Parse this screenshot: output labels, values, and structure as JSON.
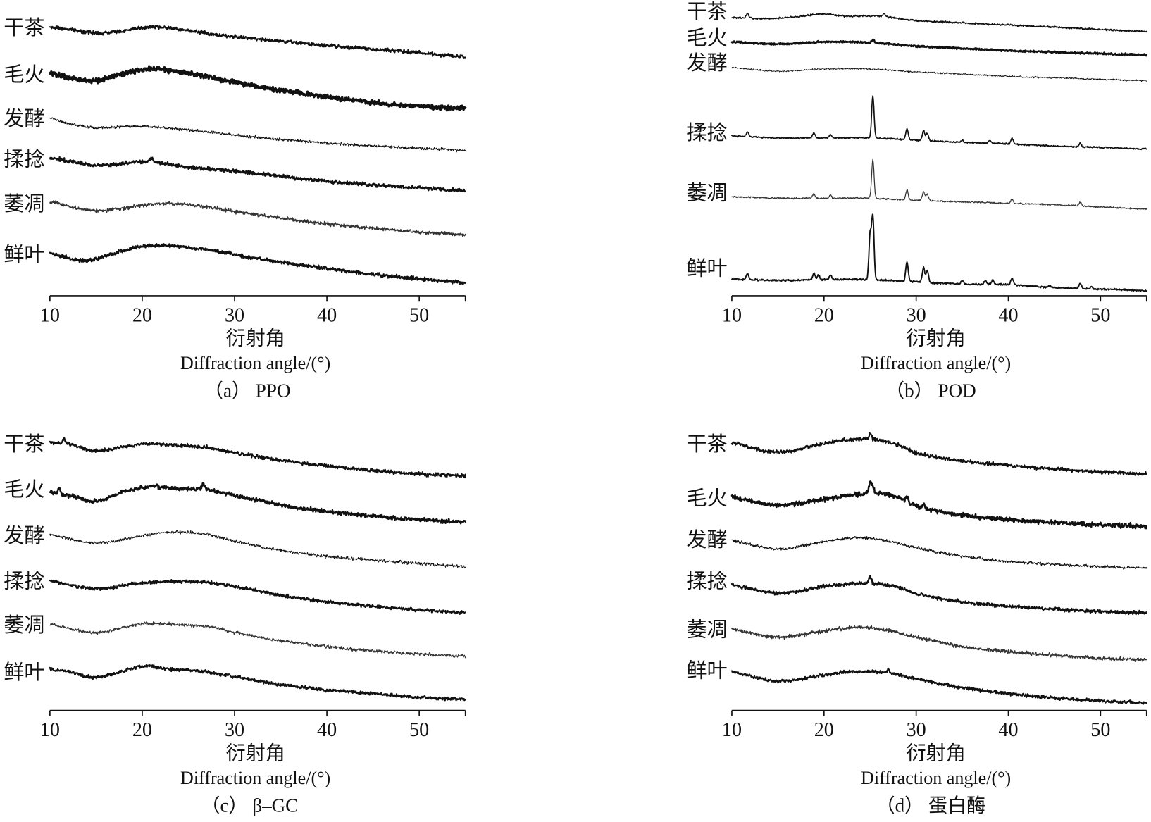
{
  "chart_data": [
    {
      "type": "line",
      "title": "（a） PPO",
      "xlabel": "衍射角",
      "xlabel_en": "Diffraction angle/(°)",
      "ylabel": "",
      "xlim": [
        10,
        55
      ],
      "xticks": [
        10,
        20,
        30,
        40,
        50
      ],
      "grid": false,
      "series": [
        {
          "name": "干茶",
          "x": [
            10,
            12,
            15,
            18,
            20,
            22,
            25,
            30,
            35,
            40,
            45,
            50,
            55
          ],
          "y": [
            41,
            38,
            33,
            36,
            40,
            41,
            36,
            28,
            22,
            16,
            11,
            6,
            0
          ],
          "peaks": []
        },
        {
          "name": "毛火",
          "x": [
            10,
            13,
            15,
            18,
            21,
            24,
            27,
            30,
            35,
            40,
            45,
            50,
            55
          ],
          "y": [
            48,
            40,
            38,
            48,
            54,
            50,
            44,
            36,
            25,
            16,
            8,
            3,
            0
          ],
          "peaks": []
        },
        {
          "name": "发酵",
          "x": [
            10,
            12,
            15,
            20,
            25,
            30,
            35,
            40,
            45,
            50,
            55
          ],
          "y": [
            45,
            37,
            31,
            33,
            28,
            21,
            15,
            10,
            6,
            3,
            0
          ],
          "peaks": []
        },
        {
          "name": "揉捻",
          "x": [
            10,
            15,
            20,
            22,
            25,
            30,
            35,
            40,
            45,
            50,
            55
          ],
          "y": [
            45,
            35,
            40,
            38,
            32,
            27,
            20,
            13,
            8,
            4,
            0
          ],
          "peaks": [
            {
              "x": 21.0,
              "h": 5
            }
          ]
        },
        {
          "name": "萎凋",
          "x": [
            10,
            15,
            20,
            23,
            27,
            30,
            35,
            40,
            45,
            50,
            55
          ],
          "y": [
            45,
            33,
            40,
            43,
            38,
            32,
            23,
            15,
            9,
            4,
            0
          ],
          "peaks": []
        },
        {
          "name": "鲜叶",
          "x": [
            10,
            14,
            17,
            20,
            23,
            27,
            30,
            35,
            40,
            45,
            50,
            55
          ],
          "y": [
            39,
            30,
            40,
            49,
            50,
            45,
            38,
            28,
            19,
            11,
            5,
            0
          ],
          "peaks": []
        }
      ]
    },
    {
      "type": "line",
      "title": "（b） POD",
      "xlabel": "衍射角",
      "xlabel_en": "Diffraction angle/(°)",
      "ylabel": "",
      "xlim": [
        10,
        55
      ],
      "xticks": [
        10,
        20,
        30,
        40,
        50
      ],
      "grid": false,
      "series": [
        {
          "name": "干茶",
          "x": [
            10,
            15,
            20,
            22,
            26,
            30,
            35,
            40,
            45,
            50,
            55
          ],
          "y": [
            19,
            18,
            24,
            21,
            21,
            15,
            12,
            9,
            6,
            3,
            0
          ],
          "peaks": [
            {
              "x": 11.7,
              "h": 6
            },
            {
              "x": 26.5,
              "h": 4
            }
          ]
        },
        {
          "name": "毛火",
          "x": [
            10,
            15,
            20,
            25,
            30,
            35,
            40,
            45,
            50,
            55
          ],
          "y": [
            18,
            15,
            18,
            17,
            12,
            9,
            6,
            4,
            2,
            0
          ],
          "peaks": [
            {
              "x": 25.3,
              "h": 4
            }
          ]
        },
        {
          "name": "发酵",
          "x": [
            10,
            15,
            20,
            25,
            30,
            35,
            40,
            45,
            50,
            55
          ],
          "y": [
            18,
            13,
            16,
            16,
            12,
            9,
            6,
            4,
            2,
            0
          ],
          "peaks": []
        },
        {
          "name": "揉捻",
          "x": [
            10,
            15,
            20,
            25,
            30,
            35,
            40,
            45,
            50,
            55
          ],
          "y": [
            18,
            15,
            15,
            15,
            12,
            9,
            7,
            4,
            2,
            0
          ],
          "peaks": [
            {
              "x": 11.7,
              "h": 6
            },
            {
              "x": 18.9,
              "h": 7
            },
            {
              "x": 20.7,
              "h": 5
            },
            {
              "x": 25.3,
              "h": 57
            },
            {
              "x": 29.0,
              "h": 15
            },
            {
              "x": 30.8,
              "h": 14
            },
            {
              "x": 31.2,
              "h": 10
            },
            {
              "x": 35.0,
              "h": 3
            },
            {
              "x": 38.0,
              "h": 4
            },
            {
              "x": 40.4,
              "h": 8
            },
            {
              "x": 47.8,
              "h": 5
            }
          ]
        },
        {
          "name": "萎凋",
          "x": [
            10,
            15,
            20,
            25,
            30,
            35,
            40,
            45,
            50,
            55
          ],
          "y": [
            17,
            15,
            15,
            15,
            12,
            10,
            8,
            6,
            3,
            0
          ],
          "peaks": [
            {
              "x": 18.9,
              "h": 6
            },
            {
              "x": 20.7,
              "h": 4
            },
            {
              "x": 25.3,
              "h": 53
            },
            {
              "x": 29.0,
              "h": 14
            },
            {
              "x": 30.8,
              "h": 12
            },
            {
              "x": 31.2,
              "h": 9
            },
            {
              "x": 40.4,
              "h": 6
            },
            {
              "x": 47.8,
              "h": 5
            }
          ]
        },
        {
          "name": "鲜叶",
          "x": [
            10,
            15,
            20,
            25,
            30,
            35,
            40,
            45,
            50,
            55
          ],
          "y": [
            16,
            14,
            15,
            15,
            12,
            9,
            8,
            4,
            2,
            0
          ],
          "peaks": [
            {
              "x": 11.7,
              "h": 8
            },
            {
              "x": 18.9,
              "h": 9
            },
            {
              "x": 19.4,
              "h": 6
            },
            {
              "x": 20.7,
              "h": 6
            },
            {
              "x": 25.0,
              "h": 60
            },
            {
              "x": 25.3,
              "h": 85
            },
            {
              "x": 29.0,
              "h": 27
            },
            {
              "x": 30.8,
              "h": 20
            },
            {
              "x": 31.2,
              "h": 16
            },
            {
              "x": 35.0,
              "h": 5
            },
            {
              "x": 37.5,
              "h": 5
            },
            {
              "x": 38.3,
              "h": 6
            },
            {
              "x": 40.4,
              "h": 9
            },
            {
              "x": 44.5,
              "h": 3
            },
            {
              "x": 47.8,
              "h": 7
            },
            {
              "x": 49.0,
              "h": 3
            }
          ]
        }
      ]
    },
    {
      "type": "line",
      "title": "（c） β–GC",
      "xlabel": "衍射角",
      "xlabel_en": "Diffraction angle/(°)",
      "ylabel": "",
      "xlim": [
        10,
        55
      ],
      "xticks": [
        10,
        20,
        30,
        40,
        50
      ],
      "grid": false,
      "series": [
        {
          "name": "干茶",
          "x": [
            10,
            12,
            15,
            20,
            23,
            27,
            30,
            35,
            40,
            45,
            50,
            55
          ],
          "y": [
            45,
            43,
            34,
            43,
            42,
            38,
            31,
            21,
            13,
            7,
            2,
            0
          ],
          "peaks": [
            {
              "x": 11.5,
              "h": 6
            }
          ]
        },
        {
          "name": "毛火",
          "x": [
            10,
            13,
            15,
            18,
            21,
            24,
            27,
            30,
            35,
            40,
            45,
            50,
            55
          ],
          "y": [
            41,
            33,
            28,
            41,
            48,
            45,
            44,
            36,
            23,
            14,
            8,
            3,
            0
          ],
          "peaks": [
            {
              "x": 11.0,
              "h": 8
            },
            {
              "x": 26.6,
              "h": 8
            }
          ]
        },
        {
          "name": "发酵",
          "x": [
            10,
            15,
            20,
            23,
            27,
            30,
            35,
            40,
            45,
            50,
            55
          ],
          "y": [
            44,
            32,
            42,
            47,
            44,
            35,
            22,
            14,
            9,
            4,
            0
          ],
          "peaks": []
        },
        {
          "name": "揉捻",
          "x": [
            10,
            15,
            20,
            25,
            28,
            30,
            35,
            40,
            45,
            50,
            55
          ],
          "y": [
            44,
            33,
            41,
            43,
            40,
            36,
            24,
            15,
            9,
            4,
            0
          ],
          "peaks": []
        },
        {
          "name": "萎凋",
          "x": [
            10,
            15,
            20,
            25,
            28,
            30,
            35,
            40,
            45,
            50,
            55
          ],
          "y": [
            44,
            32,
            44,
            42,
            39,
            32,
            21,
            13,
            7,
            3,
            0
          ],
          "peaks": []
        },
        {
          "name": "鲜叶",
          "x": [
            10,
            12,
            15,
            20,
            23,
            26,
            30,
            35,
            40,
            45,
            50,
            55
          ],
          "y": [
            41,
            38,
            30,
            45,
            41,
            39,
            31,
            20,
            13,
            8,
            3,
            0
          ],
          "peaks": []
        }
      ]
    },
    {
      "type": "line",
      "title": "（d） 蛋白酶",
      "xlabel": "衍射角",
      "xlabel_en": "Diffraction angle/(°)",
      "ylabel": "",
      "xlim": [
        10,
        55
      ],
      "xticks": [
        10,
        20,
        30,
        40,
        50
      ],
      "grid": false,
      "series": [
        {
          "name": "干茶",
          "x": [
            10,
            15,
            20,
            22,
            25,
            28,
            30,
            35,
            40,
            45,
            50,
            55
          ],
          "y": [
            43,
            30,
            42,
            46,
            48,
            40,
            29,
            18,
            12,
            7,
            3,
            0
          ],
          "peaks": [
            {
              "x": 25.0,
              "h": 8
            }
          ]
        },
        {
          "name": "毛火",
          "x": [
            10,
            15,
            20,
            23,
            25,
            28,
            30,
            35,
            40,
            45,
            50,
            55
          ],
          "y": [
            40,
            29,
            37,
            42,
            45,
            39,
            27,
            15,
            9,
            5,
            2,
            0
          ],
          "peaks": [
            {
              "x": 25.0,
              "h": 15
            },
            {
              "x": 25.3,
              "h": 10
            },
            {
              "x": 29.0,
              "h": 8
            },
            {
              "x": 30.8,
              "h": 6
            }
          ]
        },
        {
          "name": "发酵",
          "x": [
            10,
            15,
            20,
            23,
            26,
            30,
            35,
            40,
            45,
            50,
            55
          ],
          "y": [
            38,
            26,
            36,
            41,
            39,
            28,
            16,
            9,
            5,
            2,
            0
          ],
          "peaks": []
        },
        {
          "name": "揉捻",
          "x": [
            10,
            15,
            20,
            23,
            25,
            28,
            30,
            35,
            40,
            45,
            50,
            55
          ],
          "y": [
            38,
            27,
            36,
            40,
            40,
            35,
            26,
            15,
            9,
            5,
            2,
            0
          ],
          "peaks": [
            {
              "x": 25.0,
              "h": 10
            }
          ]
        },
        {
          "name": "萎凋",
          "x": [
            10,
            15,
            20,
            23,
            26,
            30,
            35,
            40,
            45,
            50,
            55
          ],
          "y": [
            42,
            31,
            39,
            44,
            42,
            31,
            18,
            11,
            6,
            2,
            0
          ],
          "peaks": []
        },
        {
          "name": "鲜叶",
          "x": [
            10,
            15,
            20,
            23,
            27,
            30,
            35,
            40,
            45,
            50,
            55
          ],
          "y": [
            43,
            30,
            38,
            43,
            41,
            33,
            21,
            13,
            7,
            3,
            0
          ],
          "peaks": [
            {
              "x": 27.0,
              "h": 5
            }
          ]
        }
      ]
    }
  ]
}
